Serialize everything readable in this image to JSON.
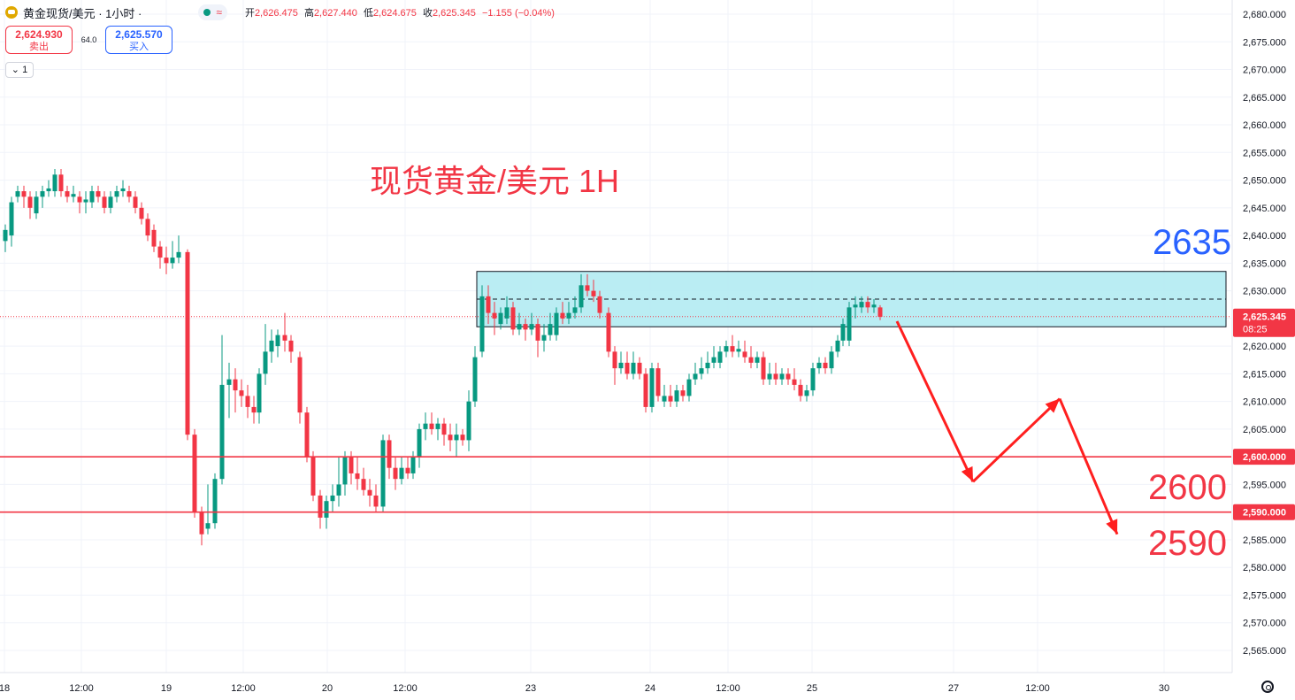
{
  "header": {
    "symbol": "黄金现货/美元 · 1小时 ·",
    "ohlc": {
      "open_label": "开",
      "open": "2,626.475",
      "high_label": "高",
      "high": "2,627.440",
      "low_label": "低",
      "low": "2,624.675",
      "close_label": "收",
      "close": "2,625.345",
      "change": "−1.155 (−0.04%)"
    }
  },
  "trade": {
    "sell_price": "2,624.930",
    "sell_label": "卖出",
    "spread": "64.0",
    "buy_price": "2,625.570",
    "buy_label": "买入"
  },
  "layers": {
    "count": "1"
  },
  "colors": {
    "up": "#089981",
    "down": "#f23645",
    "zone_fill": "#b2ebf2",
    "annot_red": "#f23645",
    "annot_blue": "#2962ff"
  },
  "chart_data": {
    "type": "candlestick",
    "title": "现货黄金/美元 1H",
    "ylim": [
      2562,
      2682
    ],
    "y_ticks": [
      2565,
      2570,
      2575,
      2580,
      2585,
      2590,
      2595,
      2600,
      2605,
      2610,
      2615,
      2620,
      2625,
      2630,
      2635,
      2640,
      2645,
      2650,
      2655,
      2660,
      2665,
      2670,
      2675,
      2680
    ],
    "x_labels": [
      "18",
      "12:00",
      "19",
      "12:00",
      "20",
      "12:00",
      "23",
      "24",
      "12:00",
      "25",
      "27",
      "12:00",
      "30"
    ],
    "x_label_positions": [
      5,
      92,
      188,
      275,
      370,
      458,
      600,
      735,
      823,
      918,
      1078,
      1173,
      1316
    ],
    "current_price": {
      "value": "2,625.345",
      "countdown": "08:25",
      "level": 2625.345
    },
    "horizontal_lines": [
      {
        "value": 2600,
        "label": "2,600.000"
      },
      {
        "value": 2590,
        "label": "2,590.000"
      }
    ],
    "zone": {
      "from_x": 539,
      "to_x": 1386,
      "top": 2633.5,
      "bottom": 2623.5,
      "dashed_mid": 2628.5
    },
    "annotations": [
      {
        "text": "2635",
        "color": "blue"
      },
      {
        "text": "2600",
        "color": "red"
      },
      {
        "text": "2590",
        "color": "red"
      }
    ],
    "forecast_path": [
      [
        1014,
        2624.5
      ],
      [
        1100,
        2595.5
      ],
      [
        1198,
        2610.5
      ],
      [
        1263,
        2586
      ]
    ],
    "candles": [
      {
        "x": 6,
        "o": 2639,
        "c": 2641,
        "h": 2642,
        "l": 2637
      },
      {
        "x": 13,
        "o": 2640,
        "c": 2646,
        "h": 2647,
        "l": 2638
      },
      {
        "x": 20,
        "o": 2647,
        "c": 2648,
        "h": 2649,
        "l": 2646
      },
      {
        "x": 27,
        "o": 2648,
        "c": 2647,
        "h": 2649,
        "l": 2645
      },
      {
        "x": 34,
        "o": 2647,
        "c": 2645,
        "h": 2648,
        "l": 2643
      },
      {
        "x": 41,
        "o": 2644,
        "c": 2647,
        "h": 2648,
        "l": 2643
      },
      {
        "x": 48,
        "o": 2647,
        "c": 2648,
        "h": 2649,
        "l": 2645
      },
      {
        "x": 55,
        "o": 2648,
        "c": 2648.5,
        "h": 2650,
        "l": 2647
      },
      {
        "x": 62,
        "o": 2648,
        "c": 2651,
        "h": 2652,
        "l": 2647
      },
      {
        "x": 69,
        "o": 2651,
        "c": 2648,
        "h": 2652,
        "l": 2647
      },
      {
        "x": 76,
        "o": 2648,
        "c": 2647,
        "h": 2649,
        "l": 2646
      },
      {
        "x": 83,
        "o": 2647,
        "c": 2647.5,
        "h": 2649,
        "l": 2646
      },
      {
        "x": 90,
        "o": 2647,
        "c": 2646,
        "h": 2648,
        "l": 2644
      },
      {
        "x": 97,
        "o": 2646,
        "c": 2646.5,
        "h": 2648,
        "l": 2644
      },
      {
        "x": 104,
        "o": 2646,
        "c": 2648,
        "h": 2649,
        "l": 2645
      },
      {
        "x": 111,
        "o": 2648,
        "c": 2647,
        "h": 2649,
        "l": 2646
      },
      {
        "x": 118,
        "o": 2647,
        "c": 2645,
        "h": 2648,
        "l": 2644
      },
      {
        "x": 125,
        "o": 2645,
        "c": 2647,
        "h": 2648,
        "l": 2644
      },
      {
        "x": 132,
        "o": 2647,
        "c": 2648,
        "h": 2649,
        "l": 2646
      },
      {
        "x": 139,
        "o": 2648,
        "c": 2648.5,
        "h": 2650,
        "l": 2647
      },
      {
        "x": 146,
        "o": 2648,
        "c": 2647,
        "h": 2649,
        "l": 2646
      },
      {
        "x": 153,
        "o": 2647,
        "c": 2645,
        "h": 2648,
        "l": 2644
      },
      {
        "x": 160,
        "o": 2645,
        "c": 2643,
        "h": 2646,
        "l": 2642
      },
      {
        "x": 167,
        "o": 2643,
        "c": 2640,
        "h": 2644,
        "l": 2639
      },
      {
        "x": 174,
        "o": 2641,
        "c": 2638,
        "h": 2642,
        "l": 2637
      },
      {
        "x": 181,
        "o": 2638,
        "c": 2636,
        "h": 2639,
        "l": 2634
      },
      {
        "x": 188,
        "o": 2636,
        "c": 2635,
        "h": 2638,
        "l": 2633
      },
      {
        "x": 195,
        "o": 2635,
        "c": 2636,
        "h": 2639,
        "l": 2634
      },
      {
        "x": 202,
        "o": 2636,
        "c": 2637,
        "h": 2640,
        "l": 2635
      },
      {
        "x": 212,
        "o": 2637,
        "c": 2604,
        "h": 2637.5,
        "l": 2603
      },
      {
        "x": 220,
        "o": 2604,
        "c": 2590,
        "h": 2605,
        "l": 2589
      },
      {
        "x": 228,
        "o": 2590,
        "c": 2586,
        "h": 2591,
        "l": 2584
      },
      {
        "x": 235,
        "o": 2587,
        "c": 2588,
        "h": 2595,
        "l": 2586
      },
      {
        "x": 243,
        "o": 2588,
        "c": 2596,
        "h": 2597,
        "l": 2587
      },
      {
        "x": 251,
        "o": 2596,
        "c": 2613,
        "h": 2622,
        "l": 2595
      },
      {
        "x": 259,
        "o": 2613,
        "c": 2614,
        "h": 2617,
        "l": 2607
      },
      {
        "x": 266,
        "o": 2614,
        "c": 2612,
        "h": 2616,
        "l": 2608
      },
      {
        "x": 273,
        "o": 2612,
        "c": 2611,
        "h": 2614,
        "l": 2609
      },
      {
        "x": 280,
        "o": 2611,
        "c": 2609,
        "h": 2613,
        "l": 2607
      },
      {
        "x": 287,
        "o": 2609,
        "c": 2608,
        "h": 2611,
        "l": 2606
      },
      {
        "x": 293,
        "o": 2608,
        "c": 2615,
        "h": 2616,
        "l": 2606
      },
      {
        "x": 300,
        "o": 2615,
        "c": 2619,
        "h": 2624,
        "l": 2613
      },
      {
        "x": 307,
        "o": 2619,
        "c": 2621,
        "h": 2623,
        "l": 2617
      },
      {
        "x": 314,
        "o": 2620,
        "c": 2622,
        "h": 2623,
        "l": 2618
      },
      {
        "x": 322,
        "o": 2622,
        "c": 2621,
        "h": 2626,
        "l": 2619
      },
      {
        "x": 329,
        "o": 2621,
        "c": 2619,
        "h": 2622,
        "l": 2617
      },
      {
        "x": 339,
        "o": 2618,
        "c": 2608,
        "h": 2619,
        "l": 2606
      },
      {
        "x": 347,
        "o": 2608,
        "c": 2600,
        "h": 2609,
        "l": 2599
      },
      {
        "x": 354,
        "o": 2600,
        "c": 2593,
        "h": 2601,
        "l": 2592
      },
      {
        "x": 362,
        "o": 2593,
        "c": 2589,
        "h": 2594,
        "l": 2587
      },
      {
        "x": 369,
        "o": 2589,
        "c": 2592,
        "h": 2593,
        "l": 2587
      },
      {
        "x": 376,
        "o": 2592,
        "c": 2593,
        "h": 2595,
        "l": 2590
      },
      {
        "x": 383,
        "o": 2593,
        "c": 2595,
        "h": 2600,
        "l": 2591
      },
      {
        "x": 390,
        "o": 2595,
        "c": 2600,
        "h": 2601,
        "l": 2593
      },
      {
        "x": 397,
        "o": 2600,
        "c": 2597,
        "h": 2601,
        "l": 2595
      },
      {
        "x": 404,
        "o": 2597,
        "c": 2596,
        "h": 2600,
        "l": 2594
      },
      {
        "x": 411,
        "o": 2596,
        "c": 2594,
        "h": 2598,
        "l": 2593
      },
      {
        "x": 418,
        "o": 2594,
        "c": 2593,
        "h": 2596,
        "l": 2591
      },
      {
        "x": 425,
        "o": 2593,
        "c": 2591,
        "h": 2595,
        "l": 2590
      },
      {
        "x": 433,
        "o": 2591,
        "c": 2603,
        "h": 2604,
        "l": 2590
      },
      {
        "x": 440,
        "o": 2603,
        "c": 2598,
        "h": 2604,
        "l": 2596
      },
      {
        "x": 447,
        "o": 2598,
        "c": 2596,
        "h": 2600,
        "l": 2594
      },
      {
        "x": 454,
        "o": 2596,
        "c": 2598,
        "h": 2600,
        "l": 2595
      },
      {
        "x": 461,
        "o": 2598,
        "c": 2597,
        "h": 2600,
        "l": 2596
      },
      {
        "x": 467,
        "o": 2597,
        "c": 2600,
        "h": 2601,
        "l": 2596
      },
      {
        "x": 474,
        "o": 2600,
        "c": 2605,
        "h": 2606,
        "l": 2598
      },
      {
        "x": 481,
        "o": 2605,
        "c": 2606,
        "h": 2608,
        "l": 2603
      },
      {
        "x": 488,
        "o": 2606,
        "c": 2605,
        "h": 2608,
        "l": 2604
      },
      {
        "x": 495,
        "o": 2605,
        "c": 2606,
        "h": 2607,
        "l": 2603
      },
      {
        "x": 502,
        "o": 2606,
        "c": 2604,
        "h": 2607,
        "l": 2602
      },
      {
        "x": 509,
        "o": 2604,
        "c": 2603,
        "h": 2606,
        "l": 2601
      },
      {
        "x": 516,
        "o": 2603,
        "c": 2604,
        "h": 2606,
        "l": 2600
      },
      {
        "x": 523,
        "o": 2604,
        "c": 2603,
        "h": 2605,
        "l": 2602
      },
      {
        "x": 530,
        "o": 2603,
        "c": 2610,
        "h": 2612,
        "l": 2601
      },
      {
        "x": 537,
        "o": 2610,
        "c": 2618,
        "h": 2620,
        "l": 2609
      },
      {
        "x": 545,
        "o": 2619,
        "c": 2629,
        "h": 2631,
        "l": 2618
      },
      {
        "x": 552,
        "o": 2629,
        "c": 2626,
        "h": 2631,
        "l": 2624
      },
      {
        "x": 559,
        "o": 2626,
        "c": 2625,
        "h": 2628,
        "l": 2622
      },
      {
        "x": 566,
        "o": 2624,
        "c": 2626,
        "h": 2627,
        "l": 2623
      },
      {
        "x": 573,
        "o": 2625,
        "c": 2627,
        "h": 2629,
        "l": 2624
      },
      {
        "x": 580,
        "o": 2627,
        "c": 2623,
        "h": 2628,
        "l": 2622
      },
      {
        "x": 587,
        "o": 2623,
        "c": 2624,
        "h": 2626,
        "l": 2622
      },
      {
        "x": 594,
        "o": 2624,
        "c": 2623,
        "h": 2625,
        "l": 2621
      },
      {
        "x": 601,
        "o": 2623,
        "c": 2624,
        "h": 2626,
        "l": 2622
      },
      {
        "x": 608,
        "o": 2624,
        "c": 2621,
        "h": 2625,
        "l": 2618
      },
      {
        "x": 615,
        "o": 2621,
        "c": 2622,
        "h": 2624,
        "l": 2619
      },
      {
        "x": 622,
        "o": 2622,
        "c": 2624,
        "h": 2626,
        "l": 2621
      },
      {
        "x": 629,
        "o": 2622,
        "c": 2626,
        "h": 2627,
        "l": 2621
      },
      {
        "x": 636,
        "o": 2626,
        "c": 2625,
        "h": 2628,
        "l": 2624
      },
      {
        "x": 643,
        "o": 2625,
        "c": 2626,
        "h": 2628,
        "l": 2624
      },
      {
        "x": 650,
        "o": 2626,
        "c": 2627,
        "h": 2629,
        "l": 2625
      },
      {
        "x": 657,
        "o": 2627,
        "c": 2631,
        "h": 2633,
        "l": 2626
      },
      {
        "x": 664,
        "o": 2631,
        "c": 2630,
        "h": 2633,
        "l": 2629
      },
      {
        "x": 671,
        "o": 2630,
        "c": 2629,
        "h": 2632,
        "l": 2628
      },
      {
        "x": 678,
        "o": 2629,
        "c": 2626,
        "h": 2630,
        "l": 2625
      },
      {
        "x": 688,
        "o": 2626,
        "c": 2619,
        "h": 2627,
        "l": 2618
      },
      {
        "x": 695,
        "o": 2619,
        "c": 2616,
        "h": 2620,
        "l": 2613
      },
      {
        "x": 702,
        "o": 2616,
        "c": 2617,
        "h": 2619,
        "l": 2615
      },
      {
        "x": 709,
        "o": 2617,
        "c": 2615,
        "h": 2619,
        "l": 2614
      },
      {
        "x": 716,
        "o": 2615,
        "c": 2617,
        "h": 2619,
        "l": 2614
      },
      {
        "x": 723,
        "o": 2617,
        "c": 2615,
        "h": 2618,
        "l": 2614
      },
      {
        "x": 730,
        "o": 2615,
        "c": 2609,
        "h": 2616,
        "l": 2608
      },
      {
        "x": 737,
        "o": 2609,
        "c": 2616,
        "h": 2617,
        "l": 2608
      },
      {
        "x": 744,
        "o": 2616,
        "c": 2611,
        "h": 2617,
        "l": 2610
      },
      {
        "x": 751,
        "o": 2610,
        "c": 2611,
        "h": 2613,
        "l": 2609
      },
      {
        "x": 758,
        "o": 2611,
        "c": 2610,
        "h": 2613,
        "l": 2609
      },
      {
        "x": 765,
        "o": 2610,
        "c": 2612,
        "h": 2613,
        "l": 2609
      },
      {
        "x": 772,
        "o": 2612,
        "c": 2611,
        "h": 2613,
        "l": 2610
      },
      {
        "x": 779,
        "o": 2611,
        "c": 2614,
        "h": 2615,
        "l": 2610
      },
      {
        "x": 786,
        "o": 2614,
        "c": 2615,
        "h": 2617,
        "l": 2613
      },
      {
        "x": 793,
        "o": 2615,
        "c": 2616,
        "h": 2618,
        "l": 2614
      },
      {
        "x": 800,
        "o": 2616,
        "c": 2617,
        "h": 2619,
        "l": 2615
      },
      {
        "x": 807,
        "o": 2617,
        "c": 2618,
        "h": 2620,
        "l": 2616
      },
      {
        "x": 814,
        "o": 2617,
        "c": 2619,
        "h": 2620,
        "l": 2616
      },
      {
        "x": 821,
        "o": 2619,
        "c": 2620,
        "h": 2621,
        "l": 2618
      },
      {
        "x": 828,
        "o": 2620,
        "c": 2619,
        "h": 2622,
        "l": 2618
      },
      {
        "x": 835,
        "o": 2619,
        "c": 2619.5,
        "h": 2621,
        "l": 2618
      },
      {
        "x": 842,
        "o": 2619,
        "c": 2618,
        "h": 2621,
        "l": 2617
      },
      {
        "x": 849,
        "o": 2618,
        "c": 2617,
        "h": 2620,
        "l": 2616
      },
      {
        "x": 856,
        "o": 2617,
        "c": 2618,
        "h": 2619,
        "l": 2616
      },
      {
        "x": 863,
        "o": 2618,
        "c": 2614,
        "h": 2619,
        "l": 2613
      },
      {
        "x": 870,
        "o": 2614,
        "c": 2615,
        "h": 2617,
        "l": 2613
      },
      {
        "x": 877,
        "o": 2615,
        "c": 2614,
        "h": 2617,
        "l": 2613
      },
      {
        "x": 884,
        "o": 2614,
        "c": 2615,
        "h": 2616,
        "l": 2613
      },
      {
        "x": 891,
        "o": 2615,
        "c": 2614,
        "h": 2616,
        "l": 2613
      },
      {
        "x": 898,
        "o": 2614,
        "c": 2613,
        "h": 2616,
        "l": 2612
      },
      {
        "x": 905,
        "o": 2613,
        "c": 2611,
        "h": 2614,
        "l": 2610
      },
      {
        "x": 912,
        "o": 2611,
        "c": 2612,
        "h": 2613,
        "l": 2610
      },
      {
        "x": 919,
        "o": 2612,
        "c": 2616,
        "h": 2617,
        "l": 2611
      },
      {
        "x": 926,
        "o": 2616,
        "c": 2617,
        "h": 2618,
        "l": 2615
      },
      {
        "x": 933,
        "o": 2617,
        "c": 2616,
        "h": 2618,
        "l": 2615
      },
      {
        "x": 940,
        "o": 2616,
        "c": 2619,
        "h": 2620,
        "l": 2615
      },
      {
        "x": 947,
        "o": 2619,
        "c": 2621,
        "h": 2622,
        "l": 2618
      },
      {
        "x": 953,
        "o": 2621,
        "c": 2624,
        "h": 2625,
        "l": 2620
      },
      {
        "x": 960,
        "o": 2621,
        "c": 2627,
        "h": 2628,
        "l": 2620
      },
      {
        "x": 967,
        "o": 2627,
        "c": 2627.5,
        "h": 2629,
        "l": 2625
      },
      {
        "x": 974,
        "o": 2627,
        "c": 2628,
        "h": 2629,
        "l": 2626
      },
      {
        "x": 981,
        "o": 2628,
        "c": 2627,
        "h": 2629,
        "l": 2626
      },
      {
        "x": 988,
        "o": 2627,
        "c": 2627.5,
        "h": 2628.5,
        "l": 2626
      },
      {
        "x": 995,
        "o": 2627,
        "c": 2625.3,
        "h": 2627.4,
        "l": 2624.7
      }
    ]
  }
}
